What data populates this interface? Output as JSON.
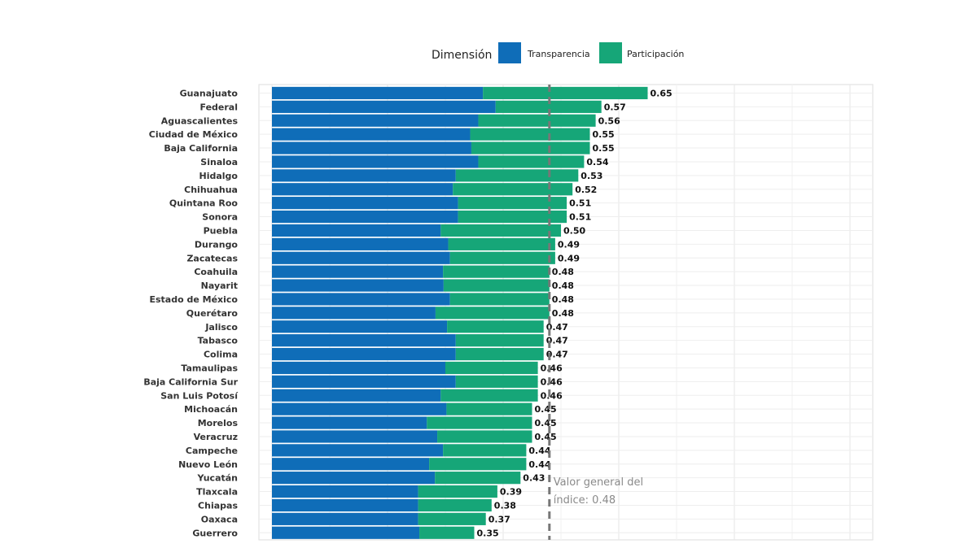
{
  "chart_data": {
    "type": "bar",
    "orientation": "horizontal",
    "stacked": true,
    "legend": {
      "title": "Dimensión",
      "placement": "top"
    },
    "categories": [
      "Guanajuato",
      "Federal",
      "Aguascalientes",
      "Ciudad de México",
      "Baja California",
      "Sinaloa",
      "Hidalgo",
      "Chihuahua",
      "Quintana Roo",
      "Sonora",
      "Puebla",
      "Durango",
      "Zacatecas",
      "Coahuila",
      "Nayarit",
      "Estado de México",
      "Querétaro",
      "Jalisco",
      "Tabasco",
      "Colima",
      "Tamaulipas",
      "Baja California Sur",
      "San Luis Potosí",
      "Michoacán",
      "Morelos",
      "Veracruz",
      "Campeche",
      "Nuevo León",
      "Yucatán",
      "Tlaxcala",
      "Chiapas",
      "Oaxaca",
      "Guerrero"
    ],
    "series": [
      {
        "name": "Transparencia",
        "color": "#0f6db8",
        "values": [
          0.365,
          0.387,
          0.357,
          0.343,
          0.345,
          0.357,
          0.318,
          0.313,
          0.322,
          0.322,
          0.292,
          0.305,
          0.308,
          0.296,
          0.297,
          0.308,
          0.283,
          0.303,
          0.318,
          0.318,
          0.3,
          0.318,
          0.292,
          0.302,
          0.268,
          0.286,
          0.296,
          0.272,
          0.282,
          0.253,
          0.253,
          0.253,
          0.255
        ]
      },
      {
        "name": "Participación",
        "color": "#16a678",
        "values": [
          0.285,
          0.183,
          0.203,
          0.207,
          0.205,
          0.183,
          0.212,
          0.207,
          0.188,
          0.188,
          0.208,
          0.185,
          0.182,
          0.184,
          0.183,
          0.172,
          0.197,
          0.167,
          0.152,
          0.152,
          0.16,
          0.142,
          0.168,
          0.148,
          0.182,
          0.164,
          0.144,
          0.168,
          0.148,
          0.137,
          0.127,
          0.117,
          0.095
        ]
      }
    ],
    "totals": [
      "0.65",
      "0.57",
      "0.56",
      "0.55",
      "0.55",
      "0.54",
      "0.53",
      "0.52",
      "0.51",
      "0.51",
      "0.50",
      "0.49",
      "0.49",
      "0.48",
      "0.48",
      "0.48",
      "0.48",
      "0.47",
      "0.47",
      "0.47",
      "0.46",
      "0.46",
      "0.46",
      "0.45",
      "0.45",
      "0.45",
      "0.44",
      "0.44",
      "0.43",
      "0.39",
      "0.38",
      "0.37",
      "0.35"
    ],
    "reference_line": {
      "value": 0.48,
      "label_lines": [
        "Valor general del",
        "índice: 0.48"
      ],
      "color": "#777777"
    },
    "xlim": [
      0,
      1.0
    ],
    "grid": true
  }
}
